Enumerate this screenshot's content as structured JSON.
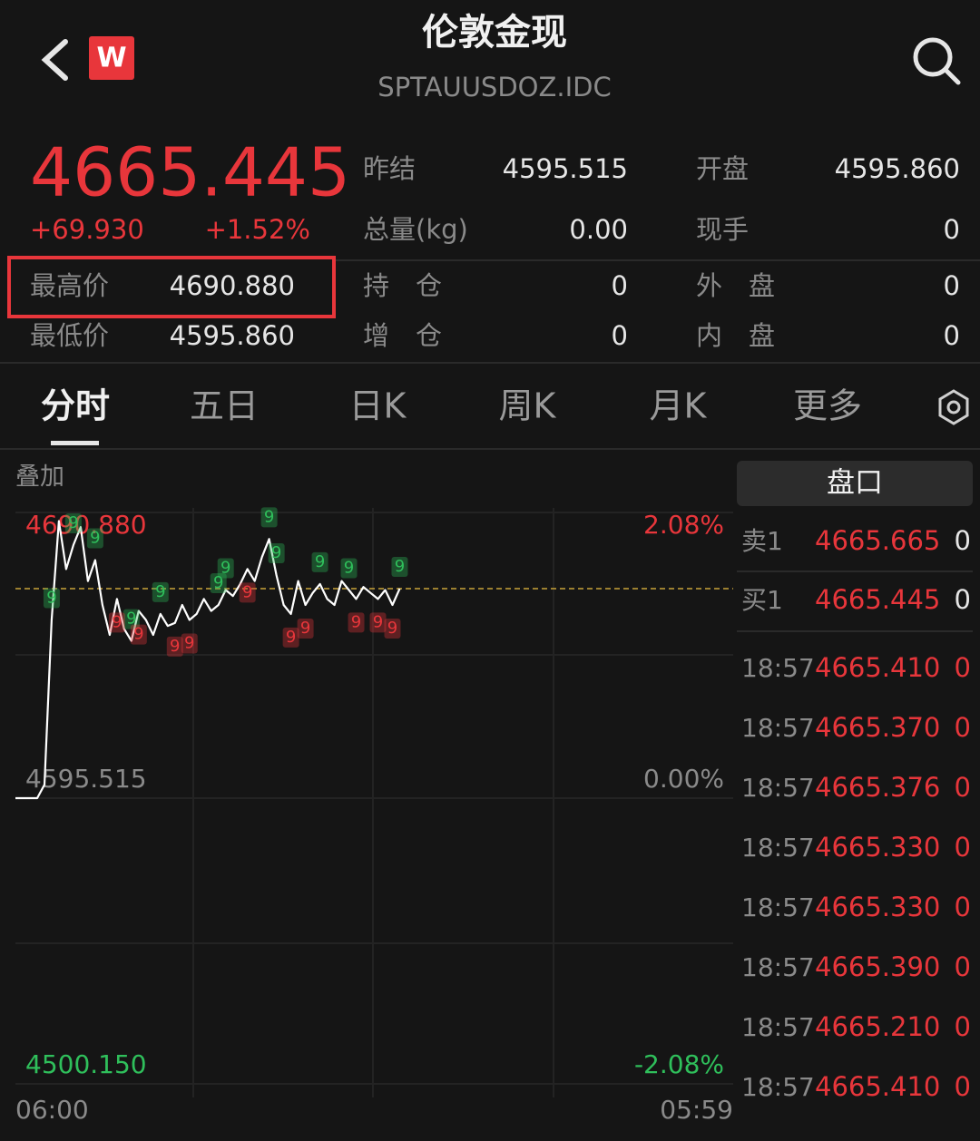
{
  "header": {
    "title": "伦敦金现",
    "code": "SPTAUUSDOZ.IDC",
    "logo": "W"
  },
  "quote": {
    "price": "4665.445",
    "change": "+69.930",
    "change_pct": "+1.52%",
    "left": [
      {
        "label": "最高价",
        "value": "4690.880"
      },
      {
        "label": "最低价",
        "value": "4595.860"
      }
    ],
    "grid": [
      [
        {
          "label": "昨结",
          "value": "4595.515"
        },
        {
          "label": "开盘",
          "value": "4595.860"
        }
      ],
      [
        {
          "label": "总量(kg)",
          "value": "0.00"
        },
        {
          "label": "现手",
          "value": "0"
        }
      ],
      [
        {
          "label": "持　仓",
          "value": "0"
        },
        {
          "label": "外　盘",
          "value": "0"
        }
      ],
      [
        {
          "label": "增　仓",
          "value": "0"
        },
        {
          "label": "内　盘",
          "value": "0"
        }
      ]
    ]
  },
  "tabs": [
    "分时",
    "五日",
    "日K",
    "周K",
    "月K",
    "更多"
  ],
  "overlay": "叠加",
  "chart_data": {
    "type": "line",
    "color": "#ffffff",
    "values": [
      4595.515,
      4595.515,
      4595.515,
      4595.515,
      4600,
      4655,
      4688,
      4672,
      4680,
      4686,
      4668,
      4675,
      4660,
      4650,
      4662,
      4652,
      4648,
      4658,
      4655,
      4650,
      4657,
      4653,
      4654,
      4660,
      4655,
      4657,
      4662,
      4658,
      4660,
      4665,
      4663,
      4667,
      4672,
      4668,
      4676,
      4682,
      4670,
      4660,
      4657,
      4668,
      4660,
      4664,
      4667,
      4662,
      4660,
      4668,
      4665,
      4662,
      4666,
      4664,
      4662,
      4665,
      4660,
      4665.445,
      null,
      null,
      null,
      null,
      null,
      null,
      null,
      null,
      null,
      null,
      null,
      null,
      null,
      null,
      null,
      null,
      null,
      null,
      null,
      null,
      null,
      null,
      null,
      null,
      null,
      null,
      null,
      null,
      null,
      null,
      null,
      null,
      null,
      null,
      null,
      null,
      null,
      null,
      null,
      null,
      null,
      null,
      null,
      null,
      null,
      null
    ],
    "ylim": [
      4500.15,
      4690.88
    ],
    "yticks": [
      {
        "value": 4690.88,
        "label": "4690.880"
      },
      {
        "value": 4595.515,
        "label": "4595.515"
      },
      {
        "value": 4500.15,
        "label": "4500.150"
      }
    ],
    "y2lim": [
      -2.08,
      2.08
    ],
    "y2ticks": [
      {
        "value": 2.08,
        "label": "2.08%"
      },
      {
        "value": 0,
        "label": "0.00%"
      },
      {
        "value": -2.08,
        "label": "-2.08%"
      }
    ],
    "x_labels": [
      "06:00",
      "05:59"
    ],
    "reference_line": 4665.445,
    "signals": [
      {
        "text": "9",
        "index": 5,
        "color": "#2fbf5b"
      },
      {
        "text": "9",
        "index": 8,
        "color": "#2fbf5b"
      },
      {
        "text": "9",
        "index": 11,
        "color": "#2fbf5b"
      },
      {
        "text": "9",
        "index": 16,
        "color": "#2fbf5b"
      },
      {
        "text": "9",
        "index": 20,
        "color": "#2fbf5b"
      },
      {
        "text": "9",
        "index": 28,
        "color": "#2fbf5b"
      },
      {
        "text": "9",
        "index": 29,
        "color": "#2fbf5b"
      },
      {
        "text": "9",
        "index": 35,
        "color": "#2fbf5b"
      },
      {
        "text": "9",
        "index": 36,
        "color": "#2fbf5b"
      },
      {
        "text": "9",
        "index": 42,
        "color": "#2fbf5b"
      },
      {
        "text": "9",
        "index": 46,
        "color": "#2fbf5b"
      },
      {
        "text": "9",
        "index": 53,
        "color": "#2fbf5b"
      },
      {
        "text": "9",
        "index": 14,
        "color": "#e8363b"
      },
      {
        "text": "9",
        "index": 17,
        "color": "#e8363b"
      },
      {
        "text": "9",
        "index": 22,
        "color": "#e8363b"
      },
      {
        "text": "9",
        "index": 24,
        "color": "#e8363b"
      },
      {
        "text": "9",
        "index": 32,
        "color": "#e8363b"
      },
      {
        "text": "9",
        "index": 38,
        "color": "#e8363b"
      },
      {
        "text": "9",
        "index": 40,
        "color": "#e8363b"
      },
      {
        "text": "9",
        "index": 47,
        "color": "#e8363b"
      },
      {
        "text": "9",
        "index": 50,
        "color": "#e8363b"
      },
      {
        "text": "9",
        "index": 52,
        "color": "#e8363b"
      }
    ]
  },
  "orderbook": {
    "title": "盘口",
    "levels": [
      {
        "label": "卖1",
        "price": "4665.665",
        "volume": 0
      },
      {
        "label": "买1",
        "price": "4665.445",
        "volume": 0
      }
    ],
    "trades": [
      {
        "time": "18:57",
        "price": "4665.410",
        "volume": 0
      },
      {
        "time": "18:57",
        "price": "4665.370",
        "volume": 0
      },
      {
        "time": "18:57",
        "price": "4665.376",
        "volume": 0
      },
      {
        "time": "18:57",
        "price": "4665.330",
        "volume": 0
      },
      {
        "time": "18:57",
        "price": "4665.330",
        "volume": 0
      },
      {
        "time": "18:57",
        "price": "4665.390",
        "volume": 0
      },
      {
        "time": "18:57",
        "price": "4665.210",
        "volume": 0
      },
      {
        "time": "18:57",
        "price": "4665.410",
        "volume": 0
      }
    ]
  }
}
